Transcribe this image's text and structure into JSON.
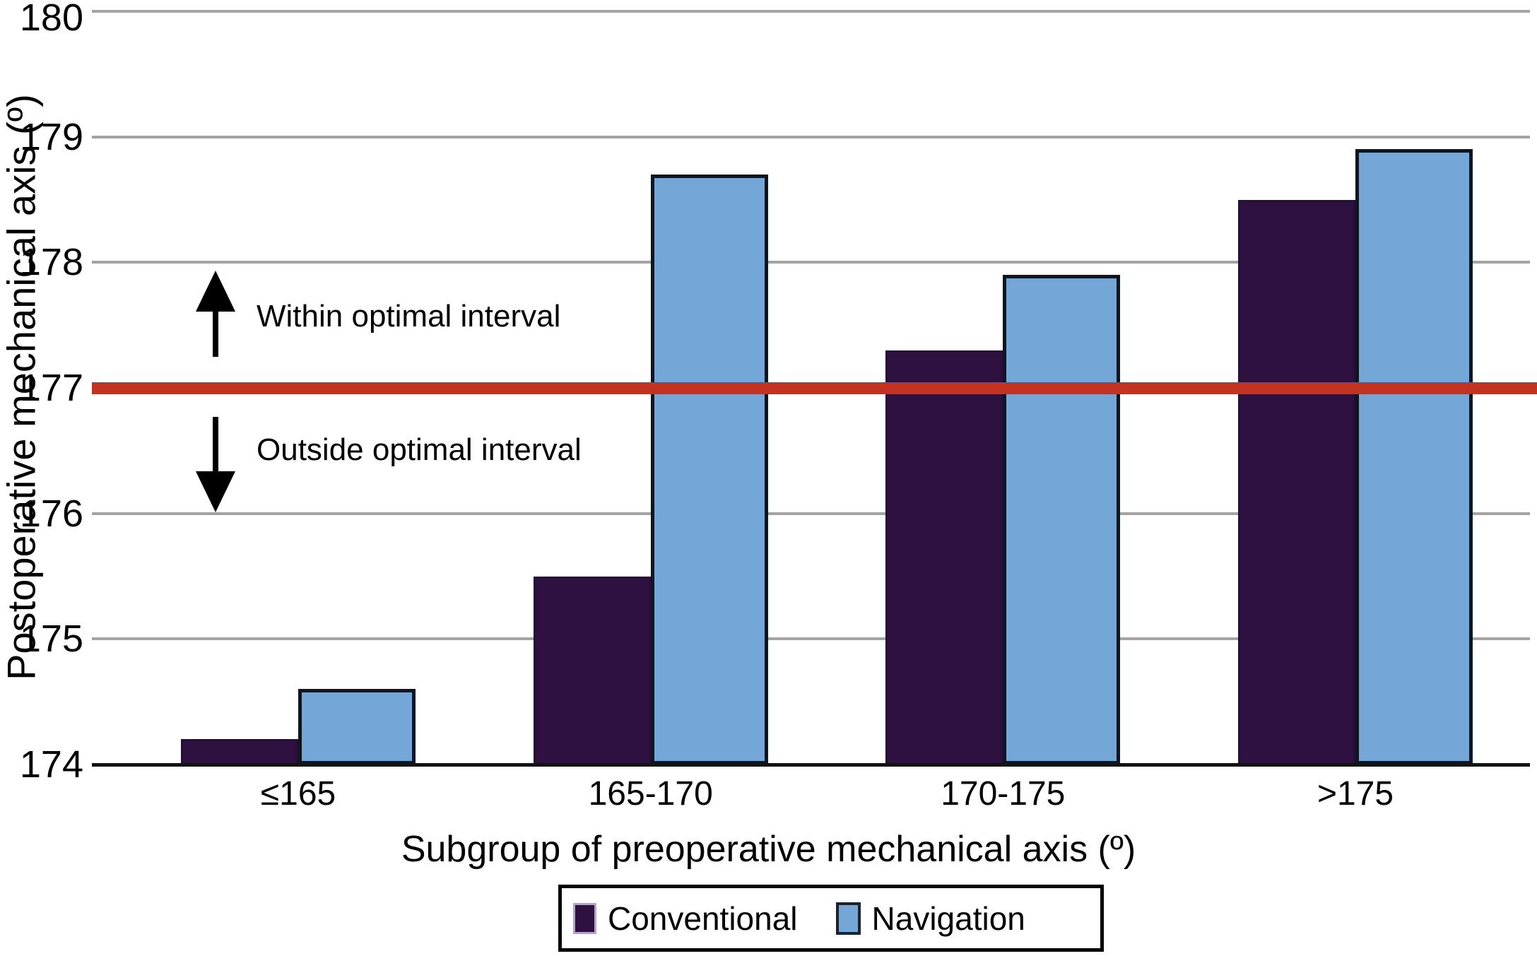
{
  "figure": {
    "y_axis_title": "Postoperative mechanical axis (º)",
    "x_axis_title": "Subgroup of preoperative mechanical axis (º)"
  },
  "annotations": {
    "above_line": "Within optimal interval",
    "below_line": "Outside optimal interval"
  },
  "legend": {
    "items": [
      {
        "label": "Conventional",
        "color": "#2e1140",
        "border": "#b5a3c7"
      },
      {
        "label": "Navigation",
        "color": "#74a6d8",
        "border": "#1a2430"
      }
    ]
  },
  "colors": {
    "conventional": "#2e1140",
    "navigation": "#74a6d8",
    "threshold_line": "#c23322",
    "gridline": "#a3a3a3",
    "axis": "#121212"
  },
  "chart_data": {
    "type": "bar",
    "title": "",
    "xlabel": "Subgroup of preoperative mechanical axis (º)",
    "ylabel": "Postoperative mechanical axis (º)",
    "categories": [
      "≤165",
      "165-170",
      "170-175",
      ">175"
    ],
    "series": [
      {
        "name": "Conventional",
        "color": "#2e1140",
        "values": [
          174.2,
          175.5,
          177.3,
          178.5
        ]
      },
      {
        "name": "Navigation",
        "color": "#74a6d8",
        "values": [
          174.6,
          178.7,
          177.9,
          178.9
        ]
      }
    ],
    "ylim": [
      174,
      180
    ],
    "yticks": [
      174,
      175,
      176,
      177,
      178,
      179,
      180
    ],
    "grid": true,
    "legend_position": "bottom",
    "threshold": {
      "value": 177,
      "color": "#c23322",
      "label_above": "Within optimal interval",
      "label_below": "Outside optimal interval"
    }
  }
}
